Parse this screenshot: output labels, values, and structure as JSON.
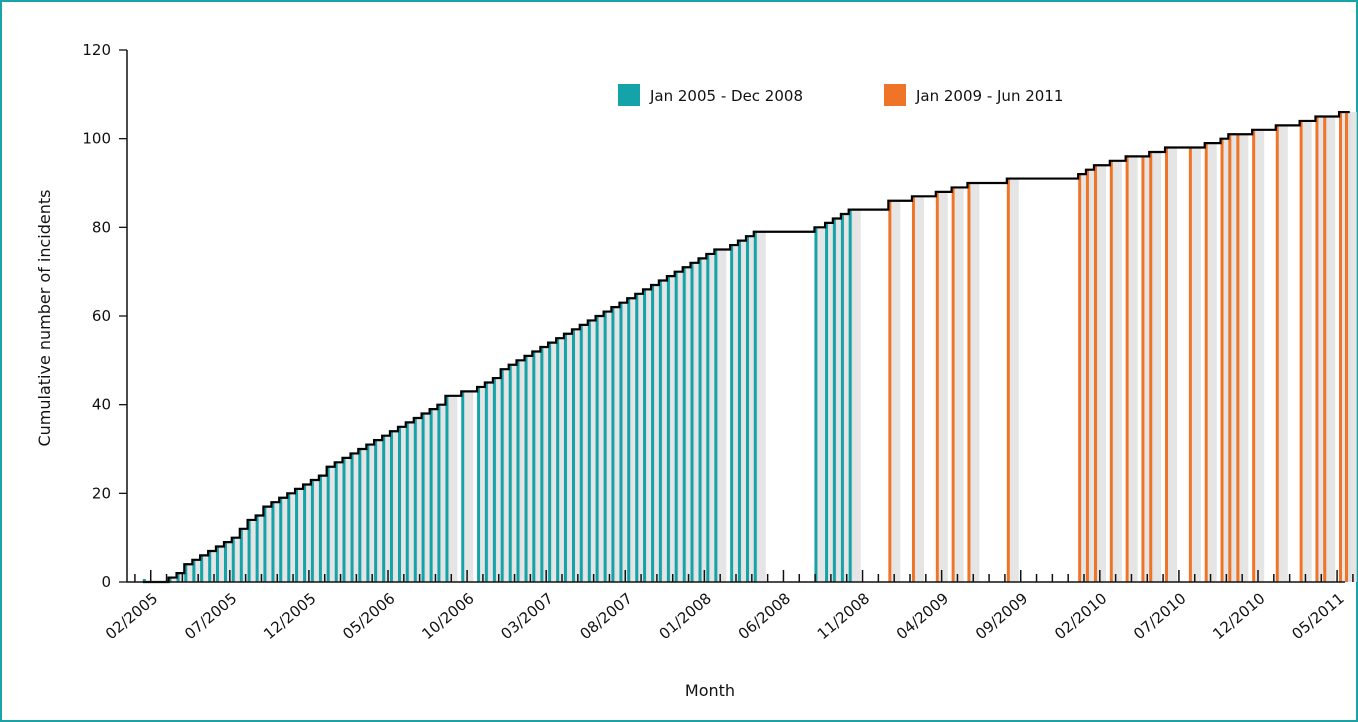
{
  "chart_data": {
    "type": "bar",
    "xlabel": "Month",
    "ylabel": "Cumulative number of incidents",
    "ylim": [
      0,
      120
    ],
    "yticks": [
      0,
      20,
      40,
      60,
      80,
      100,
      120
    ],
    "xticks": [
      "02/2005",
      "07/2005",
      "12/2005",
      "05/2006",
      "10/2006",
      "03/2007",
      "08/2007",
      "01/2008",
      "06/2008",
      "11/2008",
      "04/2009",
      "09/2009",
      "02/2010",
      "07/2010",
      "12/2010",
      "05/2011"
    ],
    "xrange_months": [
      0,
      77
    ],
    "grid": false,
    "legend_position": "top-right",
    "line_color": "#000000",
    "series": [
      {
        "name": "Jan 2005 - Dec 2008",
        "color": "#14a3a8",
        "x": [
          "2005-02-01",
          "2005-03-20",
          "2005-04-05",
          "2005-04-20",
          "2005-05-05",
          "2005-05-20",
          "2005-06-05",
          "2005-06-20",
          "2005-07-05",
          "2005-07-20",
          "2005-08-05",
          "2005-08-20",
          "2005-09-05",
          "2005-09-20",
          "2005-10-05",
          "2005-10-20",
          "2005-11-05",
          "2005-11-20",
          "2005-12-05",
          "2005-12-20",
          "2006-01-05",
          "2006-01-20",
          "2006-02-05",
          "2006-02-20",
          "2006-03-05",
          "2006-03-20",
          "2006-04-05",
          "2006-04-20",
          "2006-05-05",
          "2006-05-20",
          "2006-06-05",
          "2006-06-20",
          "2006-07-05",
          "2006-07-20",
          "2006-08-05",
          "2006-08-20",
          "2006-09-05",
          "2006-10-05",
          "2006-11-05",
          "2006-11-20",
          "2006-12-05",
          "2006-12-20",
          "2007-01-05",
          "2007-01-20",
          "2007-02-05",
          "2007-02-20",
          "2007-03-05",
          "2007-03-20",
          "2007-04-05",
          "2007-04-20",
          "2007-05-05",
          "2007-05-20",
          "2007-06-05",
          "2007-06-20",
          "2007-07-05",
          "2007-07-20",
          "2007-08-05",
          "2007-08-20",
          "2007-09-05",
          "2007-09-20",
          "2007-10-05",
          "2007-10-20",
          "2007-11-05",
          "2007-11-20",
          "2007-12-05",
          "2007-12-20",
          "2008-01-05",
          "2008-01-20",
          "2008-02-05",
          "2008-03-05",
          "2008-03-20",
          "2008-04-05",
          "2008-04-20",
          "2008-08-15",
          "2008-09-05",
          "2008-09-20",
          "2008-10-05",
          "2008-10-20"
        ],
        "values": [
          0,
          1,
          2,
          4,
          5,
          6,
          7,
          8,
          9,
          10,
          12,
          14,
          15,
          17,
          18,
          19,
          20,
          21,
          22,
          23,
          24,
          26,
          27,
          28,
          29,
          30,
          31,
          32,
          33,
          34,
          35,
          36,
          37,
          38,
          39,
          40,
          42,
          43,
          44,
          45,
          46,
          48,
          49,
          50,
          51,
          52,
          53,
          54,
          55,
          56,
          57,
          58,
          59,
          60,
          61,
          62,
          63,
          64,
          65,
          66,
          67,
          68,
          69,
          70,
          71,
          72,
          73,
          74,
          75,
          76,
          77,
          78,
          79,
          80,
          81,
          82,
          83,
          84
        ]
      },
      {
        "name": "Jan 2009 - Jun 2011",
        "color": "#f07427",
        "x": [
          "2009-01-05",
          "2009-02-20",
          "2009-04-05",
          "2009-05-05",
          "2009-06-05",
          "2009-08-20",
          "2010-01-05",
          "2010-01-20",
          "2010-02-05",
          "2010-03-05",
          "2010-04-05",
          "2010-05-05",
          "2010-05-20",
          "2010-06-20",
          "2010-08-05",
          "2010-09-05",
          "2010-10-05",
          "2010-10-20",
          "2010-11-05",
          "2010-12-05",
          "2011-01-20",
          "2011-03-05",
          "2011-04-05",
          "2011-04-20",
          "2011-05-20",
          "2011-06-01"
        ],
        "values": [
          86,
          87,
          88,
          89,
          90,
          91,
          92,
          93,
          94,
          95,
          96,
          96,
          97,
          98,
          98,
          99,
          100,
          101,
          101,
          102,
          103,
          104,
          105,
          105,
          106,
          106
        ]
      }
    ]
  }
}
